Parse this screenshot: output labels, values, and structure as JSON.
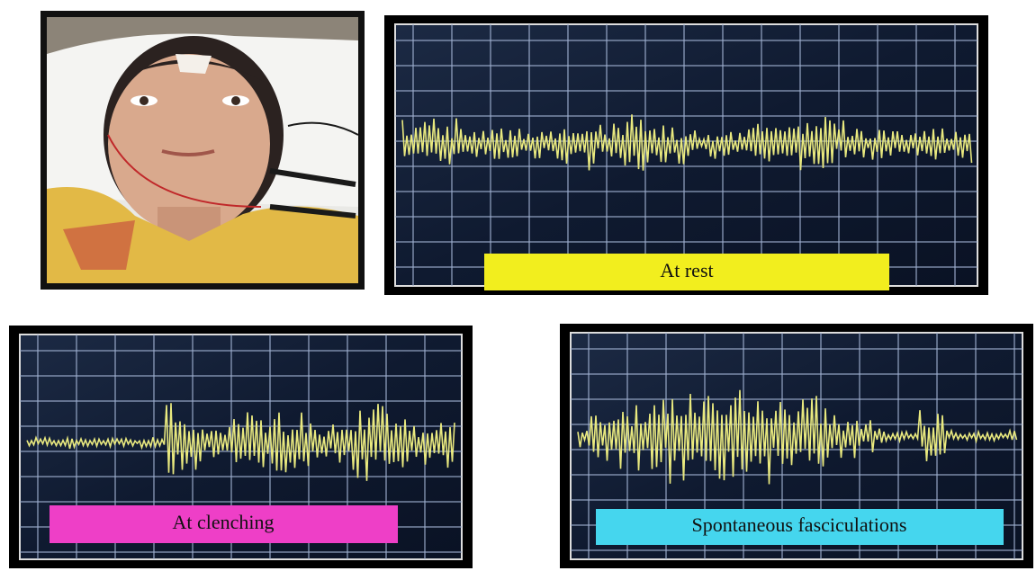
{
  "panels": [
    {
      "label": "At rest"
    },
    {
      "label": "At clenching"
    },
    {
      "label": "Spontaneous fasciculations"
    }
  ]
}
